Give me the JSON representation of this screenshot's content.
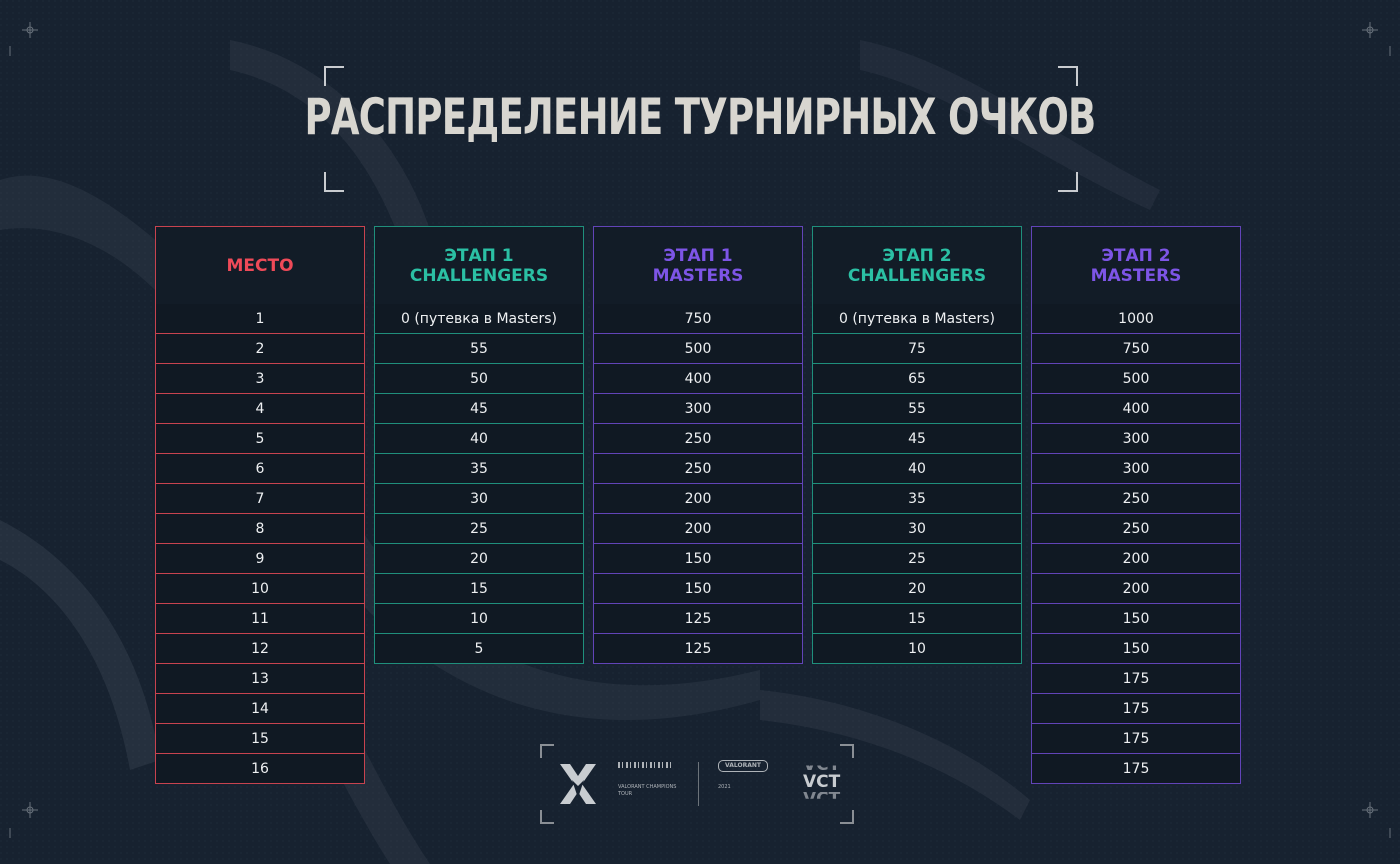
{
  "title": "РАСПРЕДЕЛЕНИЕ ТУРНИРНЫХ ОЧКОВ",
  "columns": [
    {
      "line1": "МЕСТО",
      "line2": "",
      "cells": [
        "1",
        "2",
        "3",
        "4",
        "5",
        "6",
        "7",
        "8",
        "9",
        "10",
        "11",
        "12",
        "13",
        "14",
        "15",
        "16"
      ]
    },
    {
      "line1": "ЭТАП 1",
      "line2": "CHALLENGERS",
      "cells": [
        "0 (путевка в Masters)",
        "55",
        "50",
        "45",
        "40",
        "35",
        "30",
        "25",
        "20",
        "15",
        "10",
        "5"
      ]
    },
    {
      "line1": "ЭТАП 1",
      "line2": "MASTERS",
      "cells": [
        "750",
        "500",
        "400",
        "300",
        "250",
        "250",
        "200",
        "200",
        "150",
        "150",
        "125",
        "125"
      ]
    },
    {
      "line1": "ЭТАП 2",
      "line2": "CHALLENGERS",
      "cells": [
        "0 (путевка в Masters)",
        "75",
        "65",
        "55",
        "45",
        "40",
        "35",
        "30",
        "25",
        "20",
        "15",
        "10"
      ]
    },
    {
      "line1": "ЭТАП 2",
      "line2": "MASTERS",
      "cells": [
        "1000",
        "750",
        "500",
        "400",
        "300",
        "300",
        "250",
        "250",
        "200",
        "200",
        "150",
        "150",
        "175",
        "175",
        "175",
        "175"
      ]
    }
  ],
  "footer": {
    "logo_label": "VALORANT CHAMPIONS TOUR",
    "brand": "VALORANT",
    "year": "2021",
    "vct_top": "VCT",
    "vct_mid": "VCT",
    "vct_bottom": "VCT"
  },
  "colors": {
    "red": "#ee4a58",
    "teal": "#2bc0a4",
    "purple": "#7d55e6",
    "background": "#172230",
    "title": "#d8d6d0"
  }
}
